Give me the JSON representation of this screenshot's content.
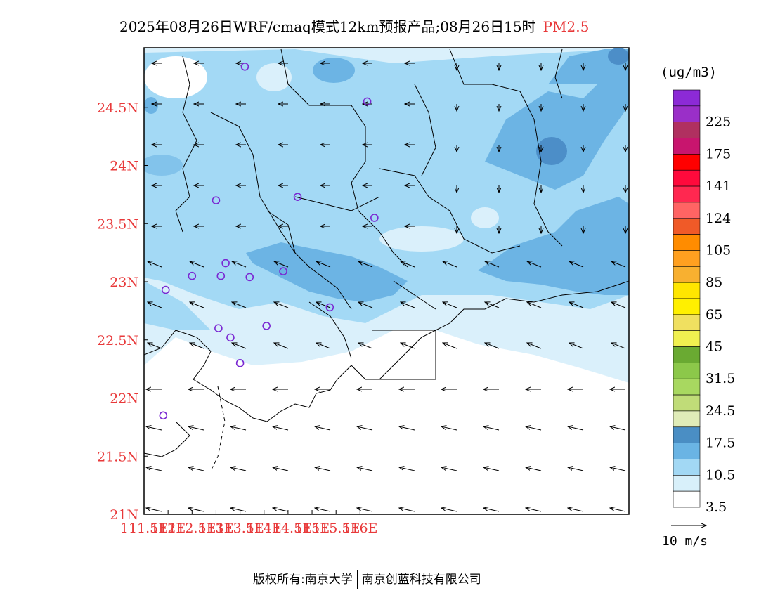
{
  "title": {
    "main": "2025年08月26日WRF/cmaq模式12km预报产品;08月26日15时",
    "pollutant": "PM2.5"
  },
  "colors": {
    "axis_label": "#e8393a",
    "conc_fill": [
      "#ffffff",
      "#daf0fb",
      "#a3d9f5",
      "#6cb4e4",
      "#4c8ec8"
    ]
  },
  "axes": {
    "lon_ticks": [
      "111.5E",
      "112E",
      "112.5E",
      "113E",
      "113.5E",
      "114E",
      "114.5E",
      "115E",
      "115.5E",
      "116E"
    ],
    "lat_ticks": [
      "21N",
      "21.5N",
      "22N",
      "22.5N",
      "23N",
      "23.5N",
      "24N",
      "24.5N"
    ]
  },
  "legend": {
    "unit": "(ug/m3)",
    "levels": [
      {
        "label": "",
        "color": "#8c2ad6"
      },
      {
        "label": "225",
        "color": "#9a2fc8"
      },
      {
        "label": "",
        "color": "#b03060"
      },
      {
        "label": "175",
        "color": "#c8156e"
      },
      {
        "label": "",
        "color": "#ff0000"
      },
      {
        "label": "141",
        "color": "#ff0a3c"
      },
      {
        "label": "",
        "color": "#ff2850"
      },
      {
        "label": "124",
        "color": "#ff6464"
      },
      {
        "label": "",
        "color": "#f05a28"
      },
      {
        "label": "105",
        "color": "#ff8c00"
      },
      {
        "label": "",
        "color": "#ffa020"
      },
      {
        "label": "85",
        "color": "#f8b030"
      },
      {
        "label": "",
        "color": "#ffe600"
      },
      {
        "label": "65",
        "color": "#fff000"
      },
      {
        "label": "",
        "color": "#f0e060"
      },
      {
        "label": "45",
        "color": "#f0f050"
      },
      {
        "label": "",
        "color": "#6aaa32"
      },
      {
        "label": "31.5",
        "color": "#8cc84a"
      },
      {
        "label": "",
        "color": "#a8d860"
      },
      {
        "label": "24.5",
        "color": "#c0dc78"
      },
      {
        "label": "",
        "color": "#e0ecb8"
      },
      {
        "label": "17.5",
        "color": "#4a8ec4"
      },
      {
        "label": "",
        "color": "#6ab4e4"
      },
      {
        "label": "10.5",
        "color": "#a2d8f4"
      },
      {
        "label": "",
        "color": "#d8f0fa"
      },
      {
        "label": "3.5",
        "color": "#ffffff"
      }
    ]
  },
  "wind_reference": "10 m/s",
  "footer": {
    "copyright": "版权所有:南京大学",
    "company": "南京创蓝科技有限公司"
  },
  "stations": [
    {
      "lon": 113.6,
      "lat": 24.85
    },
    {
      "lon": 116.15,
      "lat": 24.55
    },
    {
      "lon": 113.0,
      "lat": 23.7
    },
    {
      "lon": 114.7,
      "lat": 23.73
    },
    {
      "lon": 116.3,
      "lat": 23.55
    },
    {
      "lon": 112.5,
      "lat": 23.05
    },
    {
      "lon": 113.1,
      "lat": 23.05
    },
    {
      "lon": 113.2,
      "lat": 23.16
    },
    {
      "lon": 113.7,
      "lat": 23.04
    },
    {
      "lon": 114.4,
      "lat": 23.09
    },
    {
      "lon": 111.95,
      "lat": 22.93
    },
    {
      "lon": 115.37,
      "lat": 22.78
    },
    {
      "lon": 113.05,
      "lat": 22.6
    },
    {
      "lon": 113.3,
      "lat": 22.52
    },
    {
      "lon": 114.05,
      "lat": 22.62
    },
    {
      "lon": 113.5,
      "lat": 22.3
    },
    {
      "lon": 111.9,
      "lat": 21.85
    }
  ]
}
